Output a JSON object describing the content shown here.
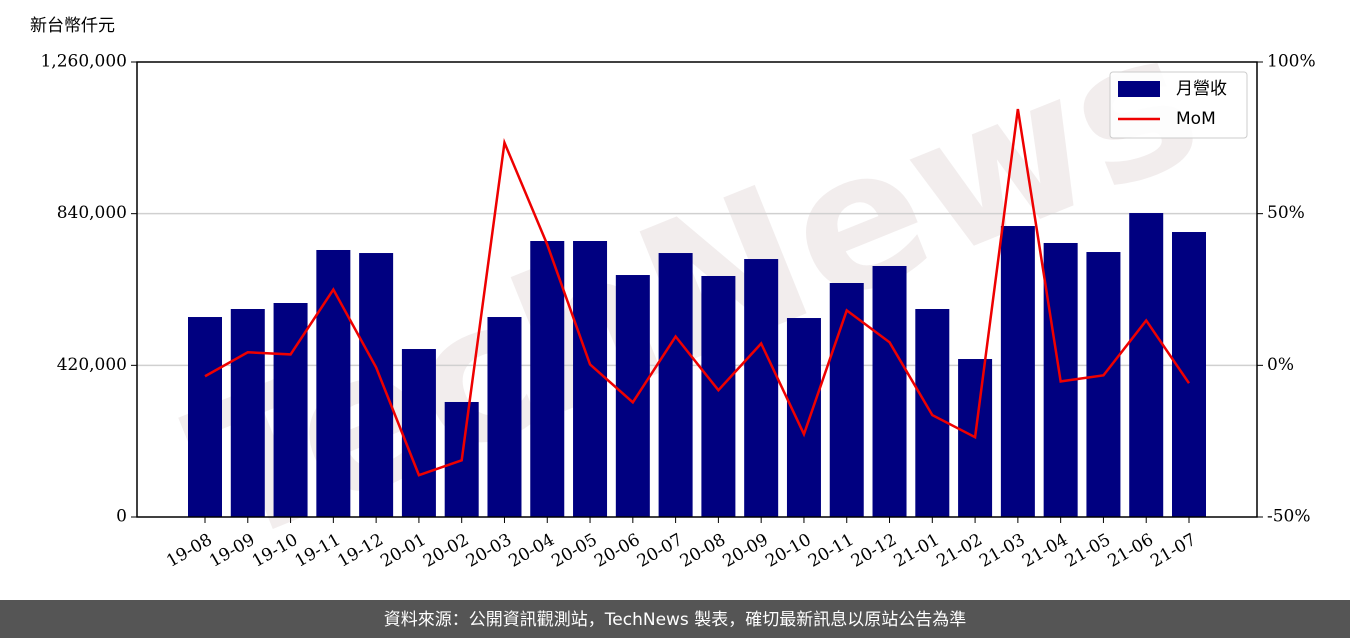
{
  "chart_data": {
    "type": "bar_line",
    "y_label": "新台幣仟元",
    "watermark": "TechNews",
    "categories": [
      "19-08",
      "19-09",
      "19-10",
      "19-11",
      "19-12",
      "20-01",
      "20-02",
      "20-03",
      "20-04",
      "20-05",
      "20-06",
      "20-07",
      "20-08",
      "20-09",
      "20-10",
      "20-11",
      "20-12",
      "21-01",
      "21-02",
      "21-03",
      "21-04",
      "21-05",
      "21-06",
      "21-07"
    ],
    "series": [
      {
        "name": "月營收",
        "color": "#000080",
        "type": "bar",
        "values": [
          553800,
          576000,
          592600,
          739400,
          731000,
          465200,
          318500,
          553800,
          764300,
          764300,
          670100,
          731000,
          667400,
          714400,
          551000,
          648000,
          695100,
          576000,
          437500,
          805800,
          758800,
          733800,
          841800,
          789200
        ]
      },
      {
        "name": "MoM",
        "color": "#ee0000",
        "type": "line",
        "axis": "y2",
        "values": [
          -3.6,
          4.3,
          3.6,
          25,
          -0.7,
          -36.2,
          -31.3,
          73.4,
          39.8,
          0.3,
          -12.2,
          9.5,
          -8.2,
          7.2,
          -22.7,
          18.1,
          7.6,
          -16.4,
          -23.7,
          84.5,
          -5.3,
          -3.3,
          14.8,
          -5.9
        ]
      }
    ],
    "ylim": [
      0,
      1260000
    ],
    "yticks": [
      0,
      {
        "value": 420000,
        "label": "420,000"
      },
      {
        "value": 840000,
        "label": "840,000"
      },
      {
        "value": 1260000,
        "label": "1,260,000"
      }
    ],
    "y2lim": [
      -50,
      100
    ],
    "y2ticks": [
      {
        "value": -50,
        "label": "-50%"
      },
      {
        "value": 0,
        "label": "0%"
      },
      {
        "value": 50,
        "label": "50%"
      },
      {
        "value": 100,
        "label": "100%"
      }
    ],
    "grid": true,
    "legend": "upper right",
    "footer": "資料來源：公開資訊觀測站，TechNews 製表，確切最新訊息以原站公告為準"
  }
}
